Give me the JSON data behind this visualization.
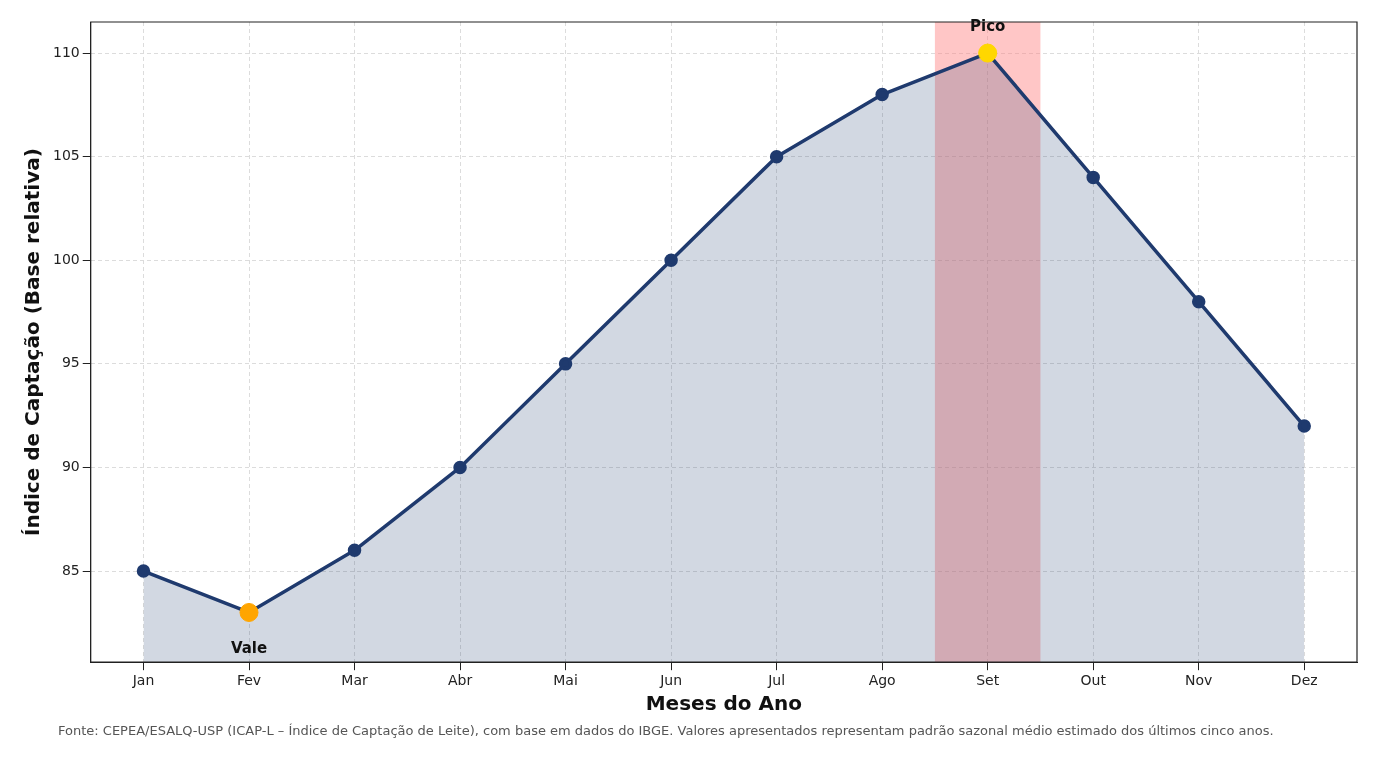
{
  "chart_data": {
    "type": "area",
    "xlabel": "Meses do Ano",
    "ylabel": "Índice de Captação (Base relativa)",
    "categories": [
      "Jan",
      "Fev",
      "Mar",
      "Abr",
      "Mai",
      "Jun",
      "Jul",
      "Ago",
      "Set",
      "Out",
      "Nov",
      "Dez"
    ],
    "ylim": [
      80.6,
      111.5
    ],
    "yticks": [
      85,
      90,
      95,
      100,
      105,
      110
    ],
    "series": [
      {
        "color": "#1f3a6e",
        "values": [
          85,
          83,
          86,
          90,
          95,
          100,
          105,
          108,
          110,
          104,
          98,
          92
        ]
      },
      {
        "type": "scatter",
        "x": [
          "Fev",
          "Set"
        ],
        "colors": [
          "#ffa500",
          "#ffd700"
        ],
        "values": [
          83,
          110
        ]
      }
    ],
    "bands": [
      {
        "axis": "x",
        "from": "Set",
        "to": "Set",
        "color": "#ff8080"
      }
    ],
    "annotations": [
      {
        "text": "Pico",
        "x": "Set",
        "y": 110
      },
      {
        "text": "Vale",
        "x": "Fev",
        "y": 83
      },
      "Fonte: CEPEA/ESALQ-USP (ICAP-L – Índice de Captação de Leite), com base em dados do IBGE. Valores apresentados representam padrão sazonal médio estimado dos últimos cinco anos."
    ],
    "grid": true,
    "marker": "circle"
  }
}
